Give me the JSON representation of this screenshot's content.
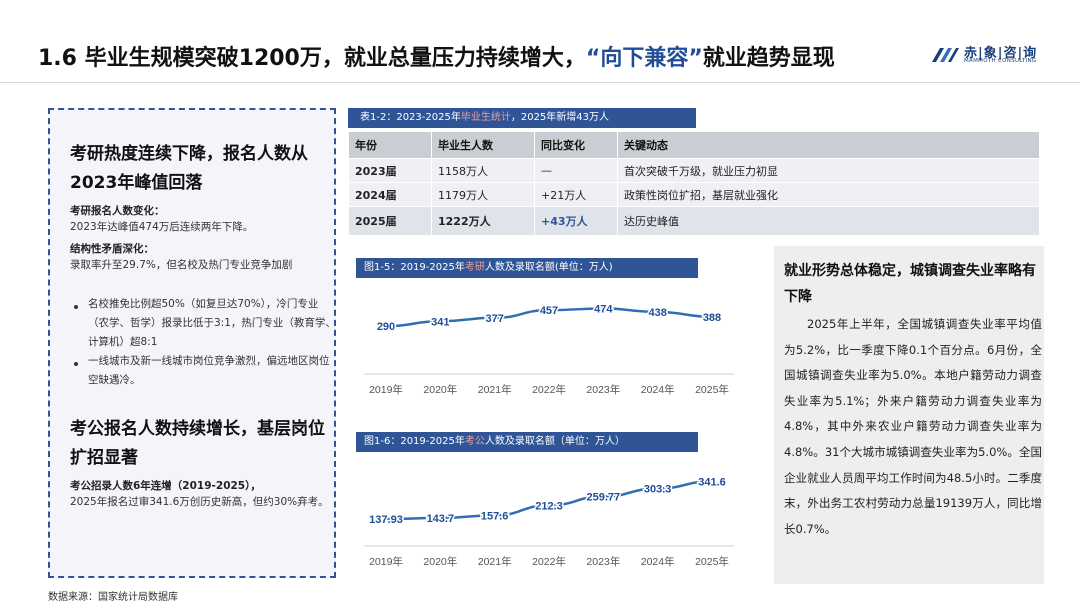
{
  "header": {
    "title_pre": "1.6 毕业生规模突破1200万，就业总量压力持续增大，",
    "title_quote": "“向下兼容”",
    "title_post": "就业趋势显现",
    "logo_cn": "赤|象|咨|询",
    "logo_en": "MAMMOTH CONSULTING"
  },
  "left_panel": {
    "section1": {
      "heading": "考研热度连续下降，报名人数从2023年峰值回落",
      "sub1": "考研报名人数变化：",
      "text1": "2023年达峰值474万后连续两年下降。",
      "sub2": "结构性矛盾深化：",
      "text2": "录取率升至29.7%，但名校及热门专业竞争加剧",
      "bullets": [
        "名校推免比例超50%（如复旦达70%），冷门专业（农学、哲学）报录比低于3:1，热门专业（教育学、计算机）超8:1",
        "一线城市及新一线城市岗位竞争激烈，偏远地区岗位空缺遇冷。"
      ]
    },
    "section2": {
      "heading": "考公报名人数持续增长，基层岗位扩招显著",
      "sub1": "考公招录人数6年连增（2019-2025），",
      "text1": "2025年报名过审341.6万创历史新高，但约30%弃考。"
    }
  },
  "table": {
    "caption_pre": "表1-2：2023-2025年",
    "caption_hl": "毕业生统计",
    "caption_post": "，2025年新增43万人",
    "headers": [
      "年份",
      "毕业生人数",
      "同比变化",
      "关键动态"
    ],
    "rows": [
      [
        "2023届",
        "1158万人",
        "—",
        "首次突破千万级，就业压力初显"
      ],
      [
        "2024届",
        "1179万人",
        "+21万人",
        "政策性岗位扩招，基层就业强化"
      ],
      [
        "2025届",
        "1222万人",
        "+43万人",
        "达历史峰值"
      ]
    ]
  },
  "chart_data": [
    {
      "type": "line",
      "caption_pre": "图1-5：2019-2025年",
      "caption_hl": "考研",
      "caption_post": "人数及录取名额(单位：万人)",
      "x": [
        "2019年",
        "2020年",
        "2021年",
        "2022年",
        "2023年",
        "2024年",
        "2025年"
      ],
      "series": [
        {
          "values": [
            290,
            341,
            377,
            457,
            474,
            438,
            388
          ]
        }
      ],
      "ylim": [
        0,
        500
      ],
      "color": "#2f6eb5"
    },
    {
      "type": "line",
      "caption_pre": "图1-6：2019-2025年",
      "caption_hl": "考公",
      "caption_post": "人数及录取名额（单位：万人）",
      "x": [
        "2019年",
        "2020年",
        "2021年",
        "2022年",
        "2023年",
        "2024年",
        "2025年"
      ],
      "series": [
        {
          "values": [
            137.93,
            143.7,
            157.6,
            212.3,
            259.77,
            303.3,
            341.6
          ]
        }
      ],
      "ylim": [
        100,
        360
      ],
      "color": "#2f6eb5"
    }
  ],
  "right_panel": {
    "heading": "就业形势总体稳定，城镇调查失业率略有下降",
    "body": "2025年上半年，全国城镇调查失业率平均值为5.2%，比一季度下降0.1个百分点。6月份，全国城镇调查失业率为5.0%。本地户籍劳动力调查失业率为5.1%；外来户籍劳动力调查失业率为4.8%，其中外来农业户籍劳动力调查失业率为4.8%。31个大城市城镇调查失业率为5.0%。全国企业就业人员周平均工作时间为48.5小时。二季度末，外出务工农村劳动力总量19139万人，同比增长0.7%。"
  },
  "footer": {
    "source": "数据来源：国家统计局数据库"
  }
}
